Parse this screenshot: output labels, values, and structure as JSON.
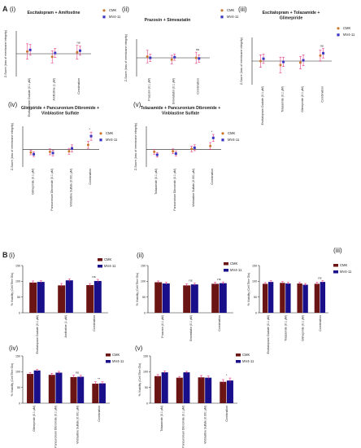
{
  "section_labels": [
    "A",
    "B"
  ],
  "chart_data": [
    {
      "id": "A-i",
      "type": "scatter",
      "panel_label": "(i)",
      "title": "Escitalopram + Amifostine",
      "ylabel": "Z-Score (loss of membrane integrity)",
      "ylim": [
        -3,
        3
      ],
      "categories": [
        "Escitalopram Oxalate (0.1 µM)",
        "Amifostine (1 µM)",
        "Combination"
      ],
      "series": [
        {
          "name": "CMK",
          "values": [
            0.3,
            -0.4,
            0.2
          ],
          "errors": [
            1.0,
            0.8,
            0.9
          ]
        },
        {
          "name": "MV4-11",
          "values": [
            0.5,
            0.1,
            0.4
          ],
          "errors": [
            0.7,
            0.6,
            0.6
          ]
        }
      ],
      "annotations": [
        {
          "category": 2,
          "text": "ns"
        }
      ]
    },
    {
      "id": "A-ii",
      "type": "scatter",
      "panel_label": "(ii)",
      "title": "Prazosin + Simvastatin",
      "ylabel": "Z-Score (loss of membrane integrity)",
      "ylim": [
        -3,
        3
      ],
      "categories": [
        "Prazosin (0.1 µM)",
        "Simvastatin (0.1 µM)",
        "Combination"
      ],
      "series": [
        {
          "name": "CMK",
          "values": [
            0.2,
            -0.3,
            0.0
          ],
          "errors": [
            1.0,
            0.7,
            0.9
          ]
        },
        {
          "name": "MV4-11",
          "values": [
            0.0,
            0.1,
            -0.1
          ],
          "errors": [
            0.6,
            0.5,
            0.6
          ]
        }
      ],
      "annotations": [
        {
          "category": 2,
          "text": "ns"
        }
      ]
    },
    {
      "id": "A-iii",
      "type": "scatter",
      "panel_label": "(iii)",
      "title": "Escitalopram + Tolazamide + Glimepiride",
      "ylabel": "Z-Score (loss of membrane integrity)",
      "ylim": [
        -3,
        3
      ],
      "categories": [
        "Escitalopram Oxalate (0.1 µM)",
        "Tolazamide (0.1 µM)",
        "Glimepiride (0.1 µM)",
        "Combination"
      ],
      "series": [
        {
          "name": "CMK",
          "values": [
            0.0,
            -0.5,
            -0.2,
            0.7
          ],
          "errors": [
            0.8,
            1.0,
            0.8,
            0.7
          ]
        },
        {
          "name": "MV4-11",
          "values": [
            0.3,
            -0.1,
            0.1,
            1.0
          ],
          "errors": [
            0.6,
            0.6,
            0.7,
            0.6
          ]
        }
      ],
      "annotations": [
        {
          "category": 3,
          "text": "ns"
        }
      ]
    },
    {
      "id": "A-iv",
      "type": "scatter",
      "panel_label": "(iv)",
      "title": "Glimpiride + Pancuronium Dibromide + Vinblastine Sulfate",
      "ylabel": "Z-Score (loss of membrane integrity)",
      "ylim": [
        -3,
        4
      ],
      "categories": [
        "Glimepiride (0.1 µM)",
        "Pancuronium Dibromide (0.1 µM)",
        "Vinblastine Sulfate (0.001 µM)",
        "Combination"
      ],
      "series": [
        {
          "name": "CMK",
          "values": [
            -0.5,
            -0.4,
            -0.3,
            0.8
          ],
          "errors": [
            0.4,
            0.5,
            0.5,
            0.6
          ]
        },
        {
          "name": "MV4-11",
          "values": [
            -0.8,
            -0.6,
            0.2,
            2.3
          ],
          "errors": [
            0.4,
            0.5,
            0.6,
            0.7
          ]
        }
      ],
      "annotations": [
        {
          "category": 3,
          "text": "*"
        }
      ]
    },
    {
      "id": "A-v",
      "type": "scatter",
      "panel_label": "(v)",
      "title": "Tolazamide + Pancuronium Dibromide + Vinblastine Sulfate",
      "ylabel": "Z-Score (loss of membrane integrity)",
      "ylim": [
        -3,
        4
      ],
      "categories": [
        "Tolazamide (0.1 µM)",
        "Pancuronium Dibromide (0.1 µM)",
        "Vinblastine Sulfate (0.001 µM)",
        "Combination"
      ],
      "series": [
        {
          "name": "CMK",
          "values": [
            -0.4,
            -0.3,
            0.1,
            0.6
          ],
          "errors": [
            0.4,
            0.4,
            0.5,
            0.6
          ]
        },
        {
          "name": "MV4-11",
          "values": [
            -0.9,
            -0.7,
            0.3,
            2.0
          ],
          "errors": [
            0.4,
            0.4,
            0.5,
            0.6
          ]
        }
      ],
      "annotations": [
        {
          "category": 3,
          "text": "*"
        }
      ]
    },
    {
      "id": "B-i",
      "type": "bar",
      "panel_label": "(i)",
      "ylabel": "% Viability (Cell Titre Glo)",
      "ylim": [
        0,
        150
      ],
      "yticks": [
        0,
        50,
        100,
        150
      ],
      "categories": [
        "Escitalopram Oxalate (0.1 µM)",
        "Amifostine (1 µM)",
        "Combination"
      ],
      "series": [
        {
          "name": "CMK",
          "values": [
            96,
            87,
            88
          ],
          "errors": [
            5,
            6,
            5
          ]
        },
        {
          "name": "MV4-11",
          "values": [
            98,
            103,
            101
          ],
          "errors": [
            4,
            5,
            5
          ]
        }
      ],
      "annotations": [
        {
          "category": 2,
          "text": "ns"
        }
      ]
    },
    {
      "id": "B-ii",
      "type": "bar",
      "panel_label": "(ii)",
      "ylabel": "% Viability (Cell Titre Glo)",
      "ylim": [
        0,
        150
      ],
      "yticks": [
        0,
        50,
        100,
        150
      ],
      "categories": [
        "Prazosin (0.1 µM)",
        "Simvastatin (0.1 µM)",
        "Combination"
      ],
      "series": [
        {
          "name": "CMK",
          "values": [
            97,
            87,
            92
          ],
          "errors": [
            4,
            5,
            5
          ]
        },
        {
          "name": "MV4-11",
          "values": [
            93,
            90,
            94
          ],
          "errors": [
            4,
            4,
            4
          ]
        }
      ],
      "annotations": [
        {
          "category": 1,
          "text": "ns"
        },
        {
          "category": 2,
          "text": "ns"
        }
      ]
    },
    {
      "id": "B-iii",
      "type": "bar",
      "panel_label": "(iii)",
      "ylabel": "% Viability (Cell Titre Glo)",
      "ylim": [
        0,
        150
      ],
      "yticks": [
        0,
        50,
        100,
        150
      ],
      "categories": [
        "Escitalopram Oxalate (0.1 µM)",
        "Tolazamide (0.1 µM)",
        "Glimepiride (0.1 µM)",
        "Combination"
      ],
      "series": [
        {
          "name": "CMK",
          "values": [
            92,
            95,
            93,
            92
          ],
          "errors": [
            4,
            4,
            4,
            5
          ]
        },
        {
          "name": "MV4-11",
          "values": [
            98,
            93,
            89,
            98
          ],
          "errors": [
            4,
            4,
            4,
            4
          ]
        }
      ],
      "annotations": [
        {
          "category": 3,
          "text": "ns"
        }
      ]
    },
    {
      "id": "B-iv",
      "type": "bar",
      "panel_label": "(iv)",
      "ylabel": "% Viability (Cell Titre Glo)",
      "ylim": [
        0,
        150
      ],
      "yticks": [
        0,
        50,
        100,
        150
      ],
      "categories": [
        "Glimepiride (0.1 µM)",
        "Pancuronium Dibromide (0.1 µM)",
        "Vinblastine Sulfate (0.001 µM)",
        "Combination"
      ],
      "series": [
        {
          "name": "CMK",
          "values": [
            93,
            90,
            83,
            62
          ],
          "errors": [
            4,
            5,
            6,
            6
          ]
        },
        {
          "name": "MV4-11",
          "values": [
            104,
            97,
            84,
            63
          ],
          "errors": [
            3,
            4,
            5,
            5
          ]
        }
      ],
      "annotations": [
        {
          "category": 2,
          "text": "ns"
        },
        {
          "category": 3,
          "text": "**"
        }
      ]
    },
    {
      "id": "B-v",
      "type": "bar",
      "panel_label": "(v)",
      "ylabel": "% Viability (Cell Titre Glo)",
      "ylim": [
        0,
        150
      ],
      "yticks": [
        0,
        50,
        100,
        150
      ],
      "categories": [
        "Tolazamide (0.1 µM)",
        "Pancuronium Dibromide (0.1 µM)",
        "Vinblastine Sulfate (0.001 µM)",
        "Combination"
      ],
      "series": [
        {
          "name": "CMK",
          "values": [
            86,
            81,
            82,
            68
          ],
          "errors": [
            5,
            4,
            6,
            7
          ]
        },
        {
          "name": "MV4-11",
          "values": [
            98,
            98,
            81,
            72
          ],
          "errors": [
            4,
            3,
            5,
            8
          ]
        }
      ],
      "annotations": [
        {
          "category": 3,
          "text": "*"
        }
      ]
    }
  ],
  "colors": {
    "A": {
      "CMK": "#c97a2e",
      "MV4-11": "#3a36c4"
    },
    "B": {
      "CMK": "#6b1414",
      "MV4-11": "#1a0f8a"
    },
    "error_bar": "#e0196e",
    "dashed_line": "#999999",
    "axis": "#222222"
  }
}
